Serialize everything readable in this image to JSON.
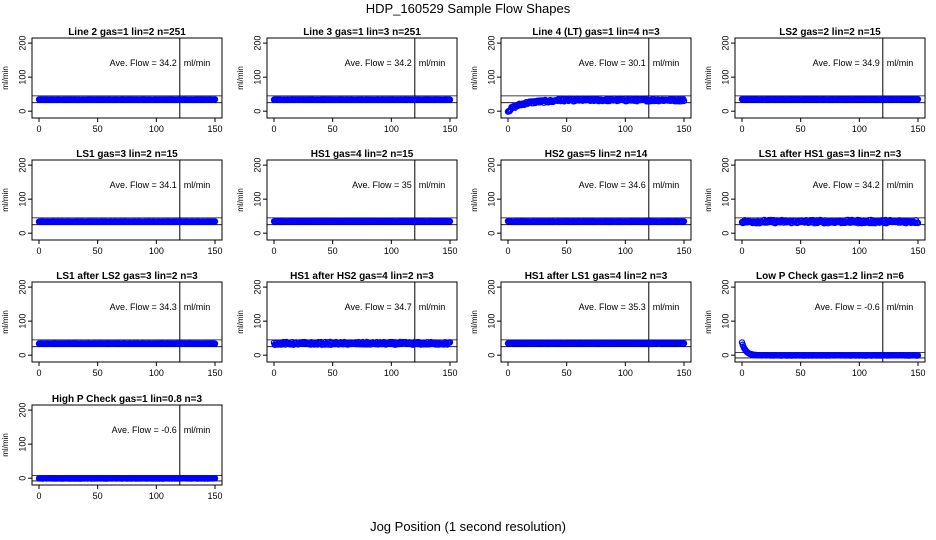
{
  "title": "HDP_160529  Sample Flow Shapes",
  "xlabel": "Jog Position (1 second resolution)",
  "colors": {
    "points": "#0000ff",
    "axes": "#000000"
  },
  "chart_data": [
    {
      "type": "scatter",
      "title": "Line 2 gas=1 lin=2 n=251",
      "ylabel": "ml/min",
      "annotation_prefix": "Ave. Flow =",
      "ave_flow": "34.2",
      "annotation_unit": "ml/min",
      "xlim": [
        0,
        150
      ],
      "ylim": [
        0,
        200
      ],
      "xticks": [
        0,
        50,
        100,
        150
      ],
      "yticks": [
        0,
        100,
        200
      ],
      "vline_x": 120,
      "hline_y": [
        25,
        45
      ],
      "pattern": "flat",
      "level": 34.2,
      "noise": 0.5
    },
    {
      "type": "scatter",
      "title": "Line 3 gas=1 lin=3 n=251",
      "ylabel": "ml/min",
      "annotation_prefix": "Ave. Flow =",
      "ave_flow": "34.2",
      "annotation_unit": "ml/min",
      "xlim": [
        0,
        150
      ],
      "ylim": [
        0,
        200
      ],
      "xticks": [
        0,
        50,
        100,
        150
      ],
      "yticks": [
        0,
        100,
        200
      ],
      "vline_x": 120,
      "hline_y": [
        25,
        45
      ],
      "pattern": "flat",
      "level": 34.2,
      "noise": 0.5
    },
    {
      "type": "scatter",
      "title": "Line 4 (LT) gas=1 lin=4 n=3",
      "ylabel": "ml/min",
      "annotation_prefix": "Ave. Flow =",
      "ave_flow": "30.1",
      "annotation_unit": "ml/min",
      "xlim": [
        0,
        150
      ],
      "ylim": [
        0,
        200
      ],
      "xticks": [
        0,
        50,
        100,
        150
      ],
      "yticks": [
        0,
        100,
        200
      ],
      "vline_x": 120,
      "hline_y": [
        25,
        45
      ],
      "pattern": "rise",
      "level": 30.1,
      "noise": 4
    },
    {
      "type": "scatter",
      "title": "LS2 gas=2 lin=2 n=15",
      "ylabel": "ml/min",
      "annotation_prefix": "Ave. Flow =",
      "ave_flow": "34.9",
      "annotation_unit": "ml/min",
      "xlim": [
        0,
        150
      ],
      "ylim": [
        0,
        200
      ],
      "xticks": [
        0,
        50,
        100,
        150
      ],
      "yticks": [
        0,
        100,
        200
      ],
      "vline_x": 120,
      "hline_y": [
        25,
        45
      ],
      "pattern": "flat",
      "level": 34.9,
      "noise": 0.8
    },
    {
      "type": "scatter",
      "title": "LS1 gas=3 lin=2 n=15",
      "ylabel": "ml/min",
      "annotation_prefix": "Ave. Flow =",
      "ave_flow": "34.1",
      "annotation_unit": "ml/min",
      "xlim": [
        0,
        150
      ],
      "ylim": [
        0,
        200
      ],
      "xticks": [
        0,
        50,
        100,
        150
      ],
      "yticks": [
        0,
        100,
        200
      ],
      "vline_x": 120,
      "hline_y": [
        25,
        45
      ],
      "pattern": "flat",
      "level": 34.1,
      "noise": 0.6
    },
    {
      "type": "scatter",
      "title": "HS1 gas=4 lin=2 n=15",
      "ylabel": "ml/min",
      "annotation_prefix": "Ave. Flow =",
      "ave_flow": "35",
      "annotation_unit": "ml/min",
      "xlim": [
        0,
        150
      ],
      "ylim": [
        0,
        200
      ],
      "xticks": [
        0,
        50,
        100,
        150
      ],
      "yticks": [
        0,
        100,
        200
      ],
      "vline_x": 120,
      "hline_y": [
        25,
        45
      ],
      "pattern": "flat",
      "level": 35,
      "noise": 0.8
    },
    {
      "type": "scatter",
      "title": "HS2 gas=5 lin=2 n=14",
      "ylabel": "ml/min",
      "annotation_prefix": "Ave. Flow =",
      "ave_flow": "34.6",
      "annotation_unit": "ml/min",
      "xlim": [
        0,
        150
      ],
      "ylim": [
        0,
        200
      ],
      "xticks": [
        0,
        50,
        100,
        150
      ],
      "yticks": [
        0,
        100,
        200
      ],
      "vline_x": 120,
      "hline_y": [
        25,
        45
      ],
      "pattern": "flat",
      "level": 34.6,
      "noise": 0.6
    },
    {
      "type": "scatter",
      "title": "LS1 after HS1 gas=3 lin=2 n=3",
      "ylabel": "ml/min",
      "annotation_prefix": "Ave. Flow =",
      "ave_flow": "34.2",
      "annotation_unit": "ml/min",
      "xlim": [
        0,
        150
      ],
      "ylim": [
        0,
        200
      ],
      "xticks": [
        0,
        50,
        100,
        150
      ],
      "yticks": [
        0,
        100,
        200
      ],
      "vline_x": 120,
      "hline_y": [
        25,
        45
      ],
      "pattern": "noisy",
      "level": 34.2,
      "noise": 5
    },
    {
      "type": "scatter",
      "title": "LS1 after LS2 gas=3 lin=2 n=3",
      "ylabel": "ml/min",
      "annotation_prefix": "Ave. Flow =",
      "ave_flow": "34.3",
      "annotation_unit": "ml/min",
      "xlim": [
        0,
        150
      ],
      "ylim": [
        0,
        200
      ],
      "xticks": [
        0,
        50,
        100,
        150
      ],
      "yticks": [
        0,
        100,
        200
      ],
      "vline_x": 120,
      "hline_y": [
        25,
        45
      ],
      "pattern": "flat",
      "level": 34.3,
      "noise": 0.6
    },
    {
      "type": "scatter",
      "title": "HS1 after HS2 gas=4 lin=2 n=3",
      "ylabel": "ml/min",
      "annotation_prefix": "Ave. Flow =",
      "ave_flow": "34.7",
      "annotation_unit": "ml/min",
      "xlim": [
        0,
        150
      ],
      "ylim": [
        0,
        200
      ],
      "xticks": [
        0,
        50,
        100,
        150
      ],
      "yticks": [
        0,
        100,
        200
      ],
      "vline_x": 120,
      "hline_y": [
        25,
        45
      ],
      "pattern": "noisy",
      "level": 34.7,
      "noise": 4
    },
    {
      "type": "scatter",
      "title": "HS1 after LS1 gas=4 lin=2 n=3",
      "ylabel": "ml/min",
      "annotation_prefix": "Ave. Flow =",
      "ave_flow": "35.3",
      "annotation_unit": "ml/min",
      "xlim": [
        0,
        150
      ],
      "ylim": [
        0,
        200
      ],
      "xticks": [
        0,
        50,
        100,
        150
      ],
      "yticks": [
        0,
        100,
        200
      ],
      "vline_x": 120,
      "hline_y": [
        25,
        45
      ],
      "pattern": "flat",
      "level": 35.3,
      "noise": 0.8
    },
    {
      "type": "scatter",
      "title": "Low P Check gas=1.2 lin=2 n=6",
      "ylabel": "ml/min",
      "annotation_prefix": "Ave. Flow =",
      "ave_flow": "-0.6",
      "annotation_unit": "ml/min",
      "xlim": [
        0,
        150
      ],
      "ylim": [
        0,
        200
      ],
      "xticks": [
        0,
        50,
        100,
        150
      ],
      "yticks": [
        0,
        100,
        200
      ],
      "vline_x": 120,
      "hline_y": [
        -8,
        8
      ],
      "pattern": "decay",
      "level": -0.6,
      "noise": 0.3
    },
    {
      "type": "scatter",
      "title": "High P Check gas=1 lin=0.8 n=3",
      "ylabel": "ml/min",
      "annotation_prefix": "Ave. Flow =",
      "ave_flow": "-0.6",
      "annotation_unit": "ml/min",
      "xlim": [
        0,
        150
      ],
      "ylim": [
        0,
        200
      ],
      "xticks": [
        0,
        50,
        100,
        150
      ],
      "yticks": [
        0,
        100,
        200
      ],
      "vline_x": 120,
      "hline_y": [
        -8,
        8
      ],
      "pattern": "flat",
      "level": -0.6,
      "noise": 0.3
    }
  ]
}
